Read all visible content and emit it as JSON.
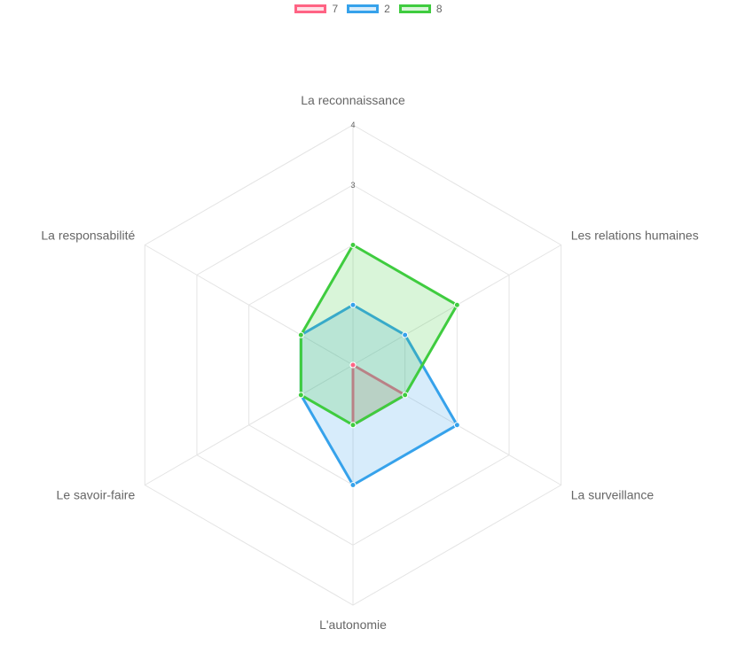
{
  "chart_data": {
    "type": "radar",
    "labels": [
      "La reconnaissance",
      "Les relations humaines",
      "La surveillance",
      "L'autonomie",
      "Le savoir-faire",
      "La responsabilité"
    ],
    "series": [
      {
        "name": "7",
        "values": [
          0,
          0,
          1,
          1,
          0,
          0
        ],
        "color": "#ff6384",
        "fill": "rgba(255,99,132,0.2)"
      },
      {
        "name": "2",
        "values": [
          1,
          1,
          2,
          2,
          1,
          1
        ],
        "color": "#36a2eb",
        "fill": "rgba(54,162,235,0.2)"
      },
      {
        "name": "8",
        "values": [
          2,
          2,
          1,
          1,
          1,
          1
        ],
        "color": "#3fcc3f",
        "fill": "rgba(63,204,63,0.2)"
      }
    ],
    "r_min": 0,
    "r_max": 4,
    "tick_labels": [
      "3",
      "4"
    ],
    "legend_position": "top",
    "grid": true
  }
}
